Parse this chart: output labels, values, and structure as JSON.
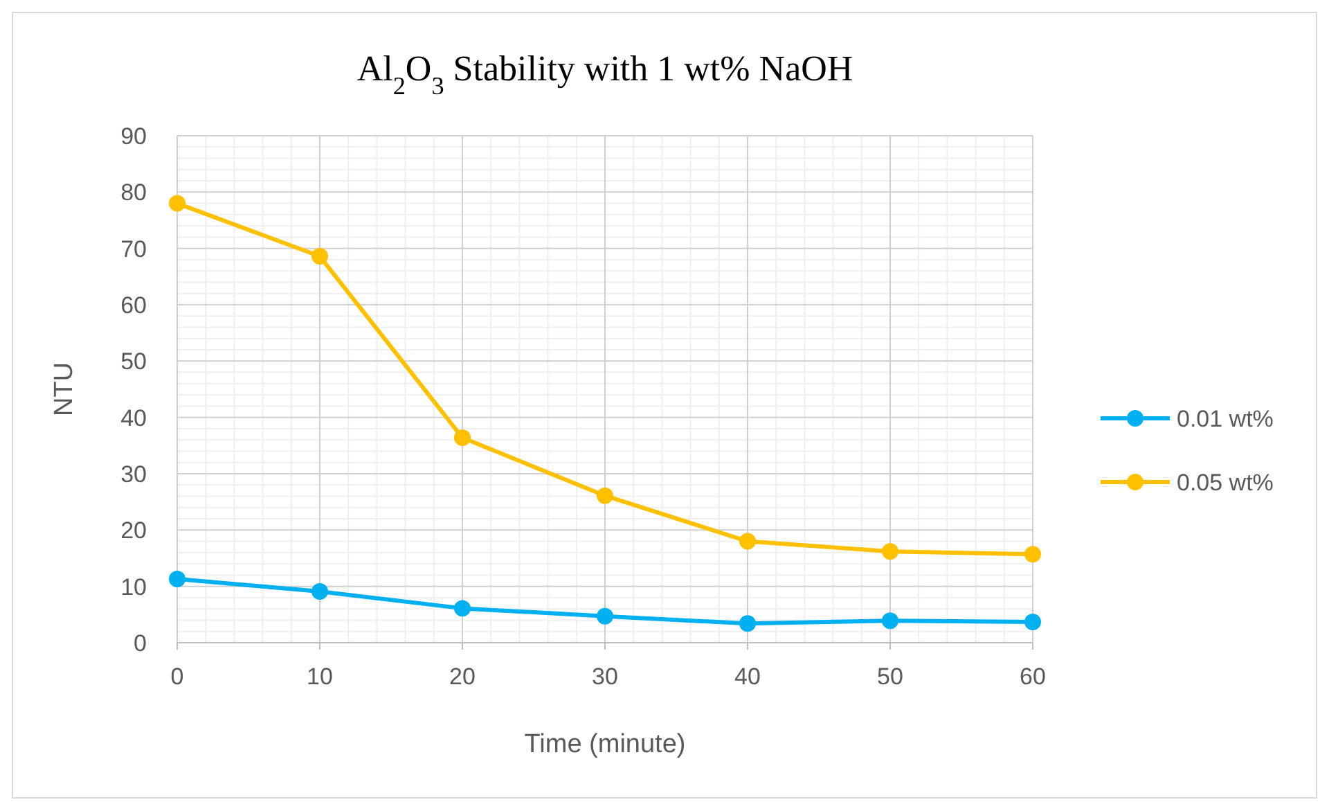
{
  "chart_data": {
    "type": "line",
    "title": "Al$_{2}$O$_{3}$ Stability with 1 wt% NaOH",
    "xlabel": "Time (minute)",
    "ylabel": "NTU",
    "x": [
      0,
      10,
      20,
      30,
      40,
      50,
      60
    ],
    "series": [
      {
        "name": "0.01 wt%",
        "color": "#00b0f0",
        "values": [
          11.3,
          9.1,
          6.1,
          4.7,
          3.4,
          3.9,
          3.7
        ]
      },
      {
        "name": "0.05 wt%",
        "color": "#ffc000",
        "values": [
          78,
          68.6,
          36.4,
          26.1,
          18,
          16.2,
          15.7
        ]
      }
    ],
    "xlim": [
      0,
      60
    ],
    "xticks": [
      0,
      10,
      20,
      30,
      40,
      50,
      60
    ],
    "ylim": [
      0,
      90
    ],
    "yticks": [
      0,
      10,
      20,
      30,
      40,
      50,
      60,
      70,
      80,
      90
    ],
    "grid": true,
    "legend": "right",
    "marker": "circle",
    "line_style": "solid"
  }
}
